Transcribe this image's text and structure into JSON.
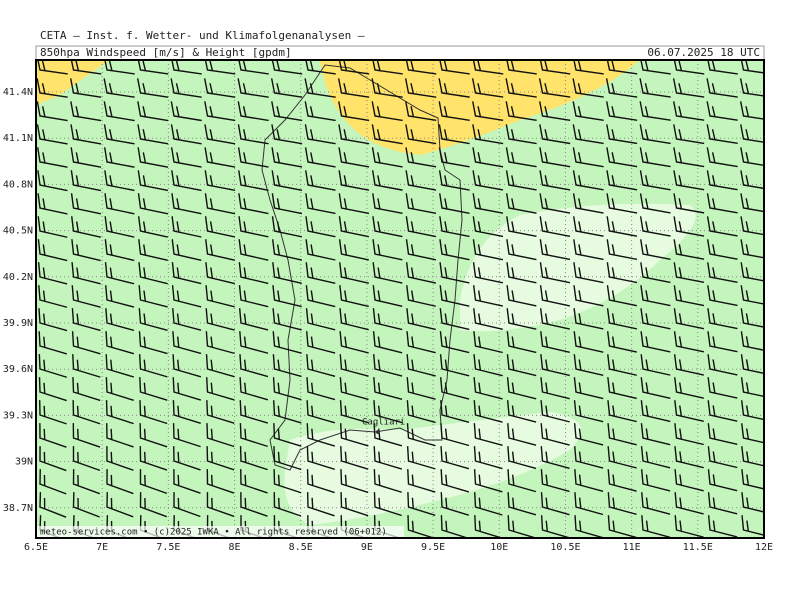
{
  "header": {
    "org": "CETA — Inst. f. Wetter- und Klimafolgenanalysen —",
    "product": "850hpa Windspeed [m/s] & Height [gpdm]",
    "valid": "06.07.2025 18 UTC"
  },
  "map": {
    "lat_labels": [
      "41.4N",
      "41.1N",
      "40.8N",
      "40.5N",
      "40.2N",
      "39.9N",
      "39.6N",
      "39.3N",
      "39N",
      "38.7N"
    ],
    "lon_labels": [
      "6.5E",
      "7E",
      "7.5E",
      "8E",
      "8.5E",
      "9E",
      "9.5E",
      "10E",
      "10.5E",
      "11E",
      "11.5E",
      "12E"
    ],
    "place": "Cagliari"
  },
  "footer": "meteo-services.com • (c)2025 IWKA • All rights reserved (06+012)"
}
